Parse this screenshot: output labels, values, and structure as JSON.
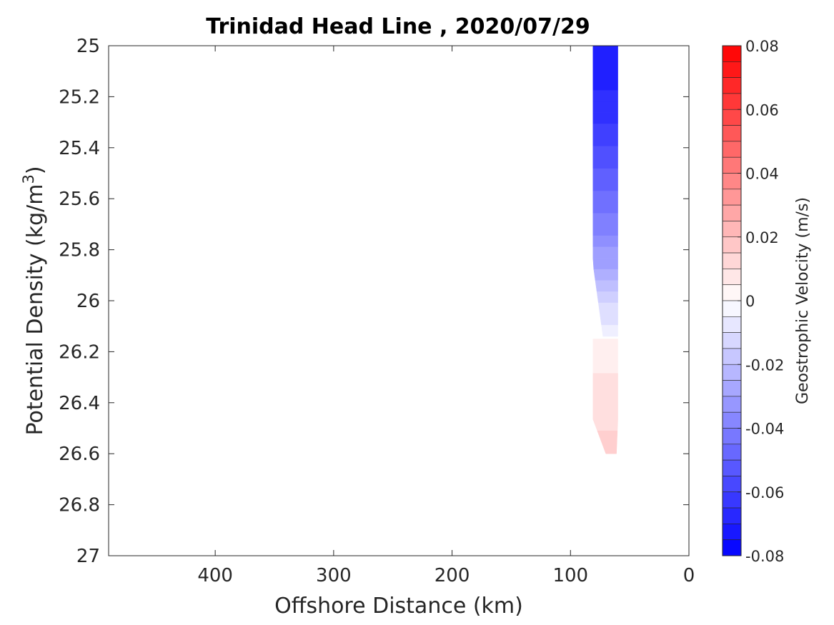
{
  "chart_data": {
    "type": "heatmap",
    "subtype": "filled-contour",
    "title": "Trinidad Head Line , 2020/07/29",
    "xlabel": "Offshore Distance (km)",
    "ylabel": "Potential Density (kg/m",
    "ylabel_sup": "3",
    "ylabel_close": ")",
    "xlim": [
      490,
      0
    ],
    "x_reversed": true,
    "ylim": [
      25,
      27
    ],
    "y_reversed": true,
    "xticks": [
      400,
      300,
      200,
      100,
      0
    ],
    "yticks": [
      25,
      25.2,
      25.4,
      25.6,
      25.8,
      26,
      26.2,
      26.4,
      26.6,
      26.8,
      27
    ],
    "grid": false,
    "colorbar": {
      "label": "Geostrophic Velocity (m/s)",
      "clim": [
        -0.08,
        0.08
      ],
      "levels": 32,
      "ticks": [
        0.08,
        0.06,
        0.04,
        0.02,
        0,
        -0.02,
        -0.04,
        -0.06,
        -0.08
      ],
      "tick_labels": [
        "0.08",
        "0.06",
        "0.04",
        "0.02",
        "0",
        "-0.02",
        "-0.04",
        "-0.06",
        "-0.08"
      ],
      "colors": {
        "negative": "#0000ff",
        "zero": "#ffffff",
        "positive": "#ff0000"
      }
    },
    "regions": [
      {
        "sign": "negative",
        "velocity_min": -0.07,
        "x_range": [
          81,
          60
        ],
        "y_range": [
          25,
          26.14
        ]
      },
      {
        "sign": "positive",
        "velocity_max": 0.015,
        "x_range": [
          81,
          60
        ],
        "y_range": [
          25.95,
          26.6
        ]
      }
    ]
  }
}
